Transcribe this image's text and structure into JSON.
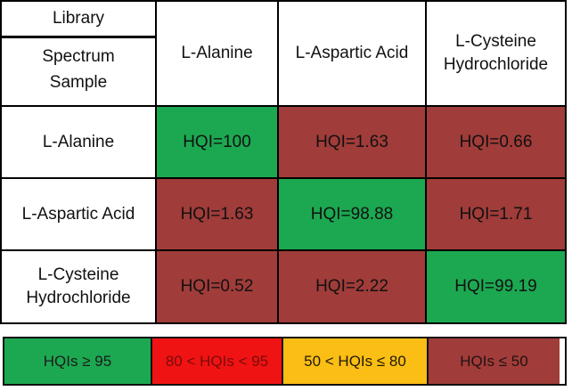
{
  "table": {
    "corner": {
      "line1": "Library",
      "line2": "Spectrum",
      "line3": "Sample"
    },
    "columns": [
      "L-Alanine",
      "L-Aspartic Acid",
      "L-Cysteine Hydrochloride"
    ],
    "rows": [
      {
        "label": "L-Alanine",
        "cells": [
          {
            "text": "HQI=100",
            "color": "#1CA851"
          },
          {
            "text": "HQI=1.63",
            "color": "#A03C39"
          },
          {
            "text": "HQI=0.66",
            "color": "#A03C39"
          }
        ]
      },
      {
        "label": "L-Aspartic Acid",
        "cells": [
          {
            "text": "HQI=1.63",
            "color": "#A03C39"
          },
          {
            "text": "HQI=98.88",
            "color": "#1CA851"
          },
          {
            "text": "HQI=1.71",
            "color": "#A03C39"
          }
        ]
      },
      {
        "label": "L-Cysteine Hydrochloride",
        "cells": [
          {
            "text": "HQI=0.52",
            "color": "#A03C39"
          },
          {
            "text": "HQI=2.22",
            "color": "#A03C39"
          },
          {
            "text": "HQI=99.19",
            "color": "#1CA851"
          }
        ]
      }
    ]
  },
  "legend": [
    {
      "label": "HQIs ≥ 95",
      "color": "#1CA851",
      "text_color": "#1b1b1b"
    },
    {
      "label": "80 < HQIs < 95",
      "color": "#F01313",
      "text_color": "#7A0A0A"
    },
    {
      "label": "50 < HQIs ≤ 80",
      "color": "#FBBE14",
      "text_color": "#1f1a05"
    },
    {
      "label": "HQIs ≤ 50",
      "color": "#A03C39",
      "text_color": "#221211"
    }
  ],
  "colors": {
    "high": "#1CA851",
    "low": "#A03C39",
    "border": "#000000"
  },
  "chart_data": {
    "type": "heatmap",
    "title": "",
    "x_axis_label": "Library Spectrum",
    "y_axis_label": "Sample",
    "columns": [
      "L-Alanine",
      "L-Aspartic Acid",
      "L-Cysteine Hydrochloride"
    ],
    "rows": [
      "L-Alanine",
      "L-Aspartic Acid",
      "L-Cysteine Hydrochloride"
    ],
    "values": [
      [
        100,
        1.63,
        0.66
      ],
      [
        1.63,
        98.88,
        1.71
      ],
      [
        0.52,
        2.22,
        99.19
      ]
    ],
    "cell_value_prefix": "HQI=",
    "legend_position": "bottom",
    "legend_bins": [
      {
        "label": "HQIs ≥ 95",
        "color": "#1CA851"
      },
      {
        "label": "80 < HQIs < 95",
        "color": "#F01313"
      },
      {
        "label": "50 < HQIs ≤ 80",
        "color": "#FBBE14"
      },
      {
        "label": "HQIs ≤ 50",
        "color": "#A03C39"
      }
    ]
  }
}
